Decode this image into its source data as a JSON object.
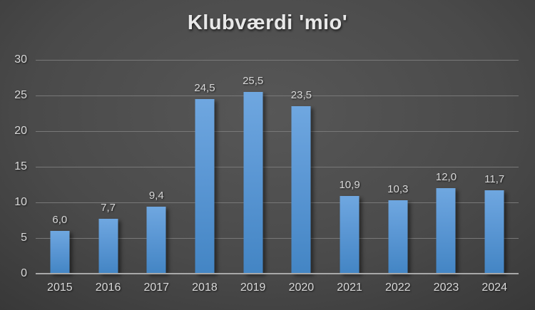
{
  "chart_data": {
    "type": "bar",
    "title": "Klubværdi 'mio'",
    "categories": [
      "2015",
      "2016",
      "2017",
      "2018",
      "2019",
      "2020",
      "2021",
      "2022",
      "2023",
      "2024"
    ],
    "values": [
      6.0,
      7.7,
      9.4,
      24.5,
      25.5,
      23.5,
      10.9,
      10.3,
      12.0,
      11.7
    ],
    "value_labels": [
      "6,0",
      "7,7",
      "9,4",
      "24,5",
      "25,5",
      "23,5",
      "10,9",
      "10,3",
      "12,0",
      "11,7"
    ],
    "xlabel": "",
    "ylabel": "",
    "ylim": [
      0,
      30
    ],
    "y_ticks": [
      0,
      5,
      10,
      15,
      20,
      25,
      30
    ],
    "y_tick_labels": [
      "0",
      "5",
      "10",
      "15",
      "20",
      "25",
      "30"
    ],
    "grid": true,
    "legend": "none",
    "decimal_separator": ",",
    "colors": {
      "bar_gradient_top": "#6fa7e0",
      "bar_gradient_bottom": "#4385c4",
      "background_center": "#575757",
      "background_edge": "#232323",
      "gridline": "#787878",
      "axis_line": "#a8a8a8",
      "tick_text": "#d9d9d9",
      "title_text": "#e8e8e8"
    }
  }
}
